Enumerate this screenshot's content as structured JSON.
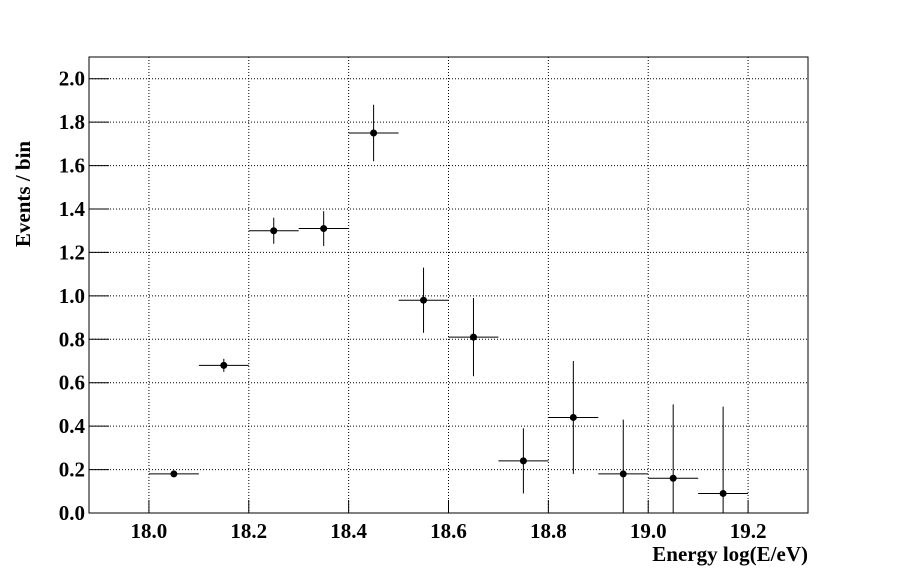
{
  "chart_data": {
    "type": "errorbar",
    "x_label": "Energy log(E/eV)",
    "y_label": "Events / bin",
    "xlim": [
      17.88,
      19.32
    ],
    "ylim": [
      0,
      2.1
    ],
    "xticks": [
      {
        "value": 18.0,
        "label": "18.0"
      },
      18.2,
      18.4,
      18.6,
      18.8,
      {
        "value": 19.0,
        "label": "19.0"
      },
      19.2
    ],
    "yticks": [
      {
        "value": 0,
        "label": "0.0"
      },
      0.2,
      0.4,
      0.6,
      0.8,
      {
        "value": 1,
        "label": "1.0"
      },
      1.2,
      1.4,
      1.6,
      1.8,
      {
        "value": 2,
        "label": "2.0"
      }
    ],
    "grid": true,
    "color": "#000000",
    "x": [
      18.05,
      18.15,
      18.25,
      18.35,
      18.45,
      18.55,
      18.65,
      18.75,
      18.85,
      18.95,
      19.05,
      19.15
    ],
    "values": [
      0.18,
      0.68,
      1.3,
      1.31,
      1.75,
      0.98,
      0.81,
      0.24,
      0.44,
      0.18,
      0.16,
      0.09
    ],
    "xerr": [
      0.05,
      0.05,
      0.05,
      0.05,
      0.05,
      0.05,
      0.05,
      0.05,
      0.05,
      0.05,
      0.05,
      0.05
    ],
    "yerr": [
      0.01,
      0.03,
      0.06,
      0.08,
      0.13,
      0.15,
      0.18,
      0.15,
      0.26,
      0.25,
      0.34,
      0.4
    ]
  }
}
